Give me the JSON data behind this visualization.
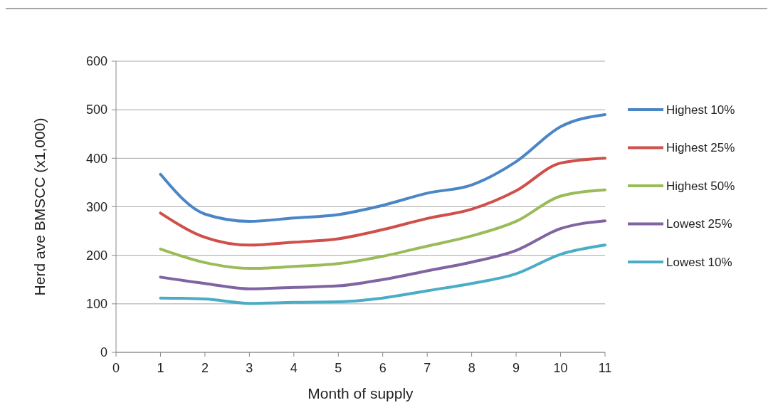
{
  "chart_data": {
    "type": "line",
    "xlabel": "Month of supply",
    "ylabel": "Herd ave BMSCC (x1,000)",
    "x": [
      1,
      2,
      3,
      4,
      5,
      6,
      7,
      8,
      9,
      10,
      11
    ],
    "xlim": [
      0,
      11
    ],
    "xticks": [
      0,
      1,
      2,
      3,
      4,
      5,
      6,
      7,
      8,
      9,
      10,
      11
    ],
    "ylim": [
      0,
      600
    ],
    "yticks": [
      0,
      100,
      200,
      300,
      400,
      500,
      600
    ],
    "grid": "y",
    "legend": "right",
    "marker": "none",
    "line_style": "solid",
    "series": [
      {
        "name": "Highest 10%",
        "color": "#4a86c5",
        "values": [
          367,
          285,
          270,
          277,
          284,
          303,
          328,
          345,
          393,
          465,
          490
        ]
      },
      {
        "name": "Highest 25%",
        "color": "#cf4f4a",
        "values": [
          287,
          237,
          221,
          227,
          234,
          253,
          276,
          295,
          333,
          390,
          400
        ]
      },
      {
        "name": "Highest 50%",
        "color": "#9bbb59",
        "values": [
          213,
          185,
          173,
          177,
          183,
          198,
          219,
          240,
          270,
          322,
          335
        ]
      },
      {
        "name": "Lowest 25%",
        "color": "#8064a2",
        "values": [
          155,
          142,
          131,
          134,
          137,
          150,
          168,
          186,
          210,
          255,
          271
        ]
      },
      {
        "name": "Lowest 10%",
        "color": "#4bacc6",
        "values": [
          112,
          110,
          101,
          103,
          104,
          112,
          127,
          142,
          162,
          202,
          221
        ]
      }
    ]
  }
}
